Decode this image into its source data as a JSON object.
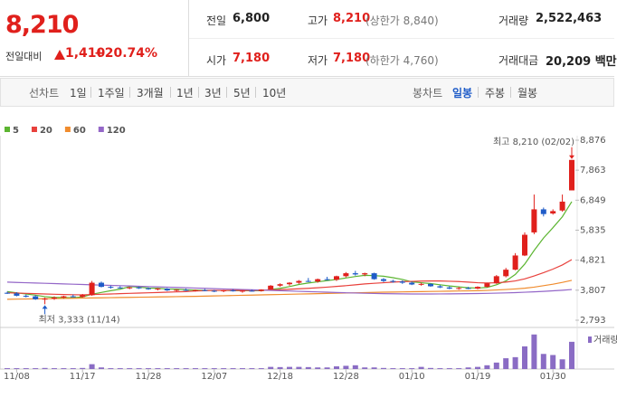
{
  "header": {
    "price": "8,210",
    "change_label": "전일대비",
    "change": "1,410",
    "change_pct": "+20.74%",
    "stats": [
      {
        "label": "전일",
        "value": "6,800"
      },
      {
        "label": "고가",
        "value": "8,210",
        "note": "(상한가 8,840)"
      },
      {
        "label": "거래량",
        "value": "2,522,463"
      },
      {
        "label": "시가",
        "value": "7,180"
      },
      {
        "label": "저가",
        "value": "7,180",
        "note": "(하한가 4,760)"
      },
      {
        "label": "거래대금",
        "value": "20,209 백만"
      }
    ]
  },
  "tabs": {
    "line": [
      "선차트",
      "1일",
      "1주일",
      "3개월",
      "1년",
      "3년",
      "5년",
      "10년"
    ],
    "candle": [
      "봉차트",
      "일봉",
      "주봉",
      "월봉"
    ]
  },
  "chart_data": {
    "type": "candlestick",
    "categories": [
      null,
      "11/08",
      null,
      null,
      null,
      null,
      null,
      null,
      "11/17",
      null,
      null,
      null,
      null,
      null,
      null,
      "11/28",
      null,
      null,
      null,
      null,
      null,
      null,
      "12/07",
      null,
      null,
      null,
      null,
      null,
      null,
      "12/18",
      null,
      null,
      null,
      null,
      null,
      null,
      "12/28",
      null,
      null,
      null,
      null,
      null,
      null,
      "01/10",
      null,
      null,
      null,
      null,
      null,
      null,
      "01/19",
      null,
      null,
      null,
      null,
      null,
      null,
      null,
      "01/30",
      null,
      null
    ],
    "open": [
      3720,
      3700,
      3620,
      3600,
      3500,
      3520,
      3560,
      3600,
      3580,
      3640,
      4060,
      3920,
      3900,
      3880,
      3900,
      3870,
      3840,
      3860,
      3800,
      3820,
      3790,
      3810,
      3790,
      3780,
      3800,
      3770,
      3790,
      3780,
      3830,
      3960,
      4010,
      4060,
      4120,
      4100,
      4180,
      4160,
      4280,
      4380,
      4340,
      4380,
      4180,
      4120,
      4100,
      4060,
      4000,
      4020,
      3940,
      3900,
      3860,
      3880,
      3860,
      3920,
      4040,
      4280,
      4500,
      4980,
      5760,
      6540,
      6400,
      6500,
      7180
    ],
    "high": [
      3760,
      3740,
      3660,
      3640,
      3560,
      3600,
      3620,
      3660,
      3680,
      4120,
      4100,
      3960,
      3940,
      3920,
      3930,
      3900,
      3880,
      3880,
      3840,
      3860,
      3830,
      3850,
      3820,
      3820,
      3840,
      3810,
      3830,
      3840,
      3980,
      4040,
      4080,
      4150,
      4220,
      4200,
      4260,
      4300,
      4420,
      4460,
      4400,
      4400,
      4220,
      4160,
      4140,
      4100,
      4060,
      4040,
      3980,
      3940,
      3920,
      3920,
      3940,
      4060,
      4320,
      4560,
      5060,
      5760,
      7040,
      6600,
      6540,
      7040,
      8210
    ],
    "low": [
      3680,
      3600,
      3560,
      3480,
      3333,
      3480,
      3520,
      3560,
      3560,
      3620,
      3900,
      3860,
      3860,
      3840,
      3850,
      3820,
      3800,
      3780,
      3760,
      3780,
      3760,
      3770,
      3740,
      3740,
      3760,
      3720,
      3760,
      3760,
      3820,
      3920,
      3960,
      4020,
      4080,
      4060,
      4140,
      4120,
      4240,
      4300,
      4280,
      4160,
      4080,
      4060,
      4020,
      3980,
      3960,
      3920,
      3880,
      3840,
      3820,
      3840,
      3840,
      3900,
      4020,
      4240,
      4480,
      4960,
      5700,
      6300,
      6360,
      6460,
      7180
    ],
    "close": [
      3700,
      3620,
      3600,
      3500,
      3520,
      3560,
      3600,
      3580,
      3640,
      4060,
      3920,
      3900,
      3880,
      3900,
      3870,
      3840,
      3860,
      3800,
      3820,
      3790,
      3810,
      3790,
      3780,
      3800,
      3770,
      3790,
      3780,
      3830,
      3960,
      4010,
      4060,
      4120,
      4100,
      4180,
      4160,
      4280,
      4380,
      4340,
      4380,
      4180,
      4120,
      4100,
      4060,
      4000,
      4020,
      3940,
      3900,
      3860,
      3880,
      3860,
      3920,
      4040,
      4280,
      4500,
      4980,
      5680,
      6540,
      6380,
      6480,
      6800,
      8210
    ],
    "up_color": "#e0201c",
    "down_color": "#1f5cc8",
    "series": [
      {
        "name": "5",
        "color": "#5cb531",
        "values": [
          3760,
          3720,
          3680,
          3640,
          3590,
          3560,
          3560,
          3550,
          3580,
          3670,
          3730,
          3790,
          3840,
          3930,
          3910,
          3880,
          3870,
          3850,
          3840,
          3820,
          3810,
          3800,
          3800,
          3800,
          3790,
          3790,
          3790,
          3790,
          3830,
          3870,
          3930,
          4000,
          4050,
          4090,
          4130,
          4170,
          4220,
          4270,
          4310,
          4300,
          4280,
          4230,
          4170,
          4090,
          4060,
          4030,
          3990,
          3950,
          3920,
          3890,
          3880,
          3900,
          3990,
          4120,
          4340,
          4690,
          5150,
          5570,
          5920,
          6290,
          6800
        ]
      },
      {
        "name": "20",
        "color": "#e8413c",
        "values": [
          3720,
          3710,
          3700,
          3690,
          3680,
          3670,
          3660,
          3655,
          3650,
          3660,
          3670,
          3680,
          3690,
          3700,
          3710,
          3720,
          3730,
          3740,
          3750,
          3760,
          3780,
          3790,
          3800,
          3800,
          3800,
          3800,
          3800,
          3805,
          3815,
          3825,
          3840,
          3855,
          3870,
          3890,
          3910,
          3935,
          3960,
          3990,
          4020,
          4040,
          4060,
          4080,
          4095,
          4105,
          4115,
          4120,
          4120,
          4110,
          4100,
          4080,
          4060,
          4050,
          4060,
          4080,
          4120,
          4190,
          4290,
          4400,
          4520,
          4660,
          4840
        ]
      },
      {
        "name": "60",
        "color": "#f08c2e",
        "values": [
          3500,
          3505,
          3510,
          3515,
          3520,
          3525,
          3530,
          3535,
          3540,
          3545,
          3550,
          3555,
          3560,
          3565,
          3570,
          3575,
          3580,
          3585,
          3590,
          3595,
          3600,
          3607,
          3614,
          3621,
          3628,
          3635,
          3642,
          3649,
          3656,
          3663,
          3670,
          3677,
          3684,
          3691,
          3698,
          3705,
          3712,
          3719,
          3726,
          3733,
          3740,
          3745,
          3750,
          3755,
          3760,
          3765,
          3770,
          3775,
          3780,
          3785,
          3790,
          3800,
          3815,
          3830,
          3850,
          3875,
          3910,
          3960,
          4010,
          4070,
          4140
        ]
      },
      {
        "name": "120",
        "color": "#9467c8",
        "values": [
          4080,
          4070,
          4060,
          4050,
          4040,
          4030,
          4020,
          4010,
          4000,
          3990,
          3980,
          3970,
          3960,
          3950,
          3940,
          3930,
          3920,
          3910,
          3900,
          3890,
          3880,
          3870,
          3860,
          3850,
          3840,
          3830,
          3820,
          3810,
          3800,
          3790,
          3780,
          3770,
          3760,
          3750,
          3740,
          3730,
          3720,
          3712,
          3704,
          3696,
          3690,
          3686,
          3683,
          3680,
          3680,
          3680,
          3681,
          3683,
          3686,
          3690,
          3695,
          3700,
          3708,
          3716,
          3726,
          3738,
          3752,
          3768,
          3786,
          3806,
          3830
        ]
      }
    ],
    "ylim": [
      2793,
      8876
    ],
    "yticks": [
      {
        "value": 8876,
        "label": "8,876"
      },
      {
        "value": 7863,
        "label": "7,863"
      },
      {
        "value": 6849,
        "label": "6,849"
      },
      {
        "value": 5835,
        "label": "5,835"
      },
      {
        "value": 4821,
        "label": "4,821"
      },
      {
        "value": 3807,
        "label": "3,807"
      },
      {
        "value": 2793,
        "label": "2,793"
      }
    ],
    "annotations": [
      "최고 8,210 (02/02)",
      "최저 3,333 (11/14)"
    ],
    "volume": {
      "name": "거래량",
      "color": "#8a6cc4",
      "ylim": [
        0,
        3600000
      ],
      "values": [
        80000,
        80000,
        80000,
        80000,
        100000,
        80000,
        80000,
        80000,
        100000,
        450000,
        150000,
        80000,
        80000,
        80000,
        80000,
        80000,
        80000,
        80000,
        80000,
        80000,
        80000,
        80000,
        80000,
        80000,
        80000,
        80000,
        80000,
        80000,
        200000,
        180000,
        200000,
        200000,
        180000,
        150000,
        150000,
        250000,
        300000,
        350000,
        150000,
        150000,
        100000,
        80000,
        80000,
        80000,
        200000,
        100000,
        80000,
        80000,
        80000,
        150000,
        200000,
        350000,
        600000,
        1000000,
        1100000,
        2100000,
        3200000,
        1400000,
        1300000,
        900000,
        2522463
      ]
    }
  }
}
